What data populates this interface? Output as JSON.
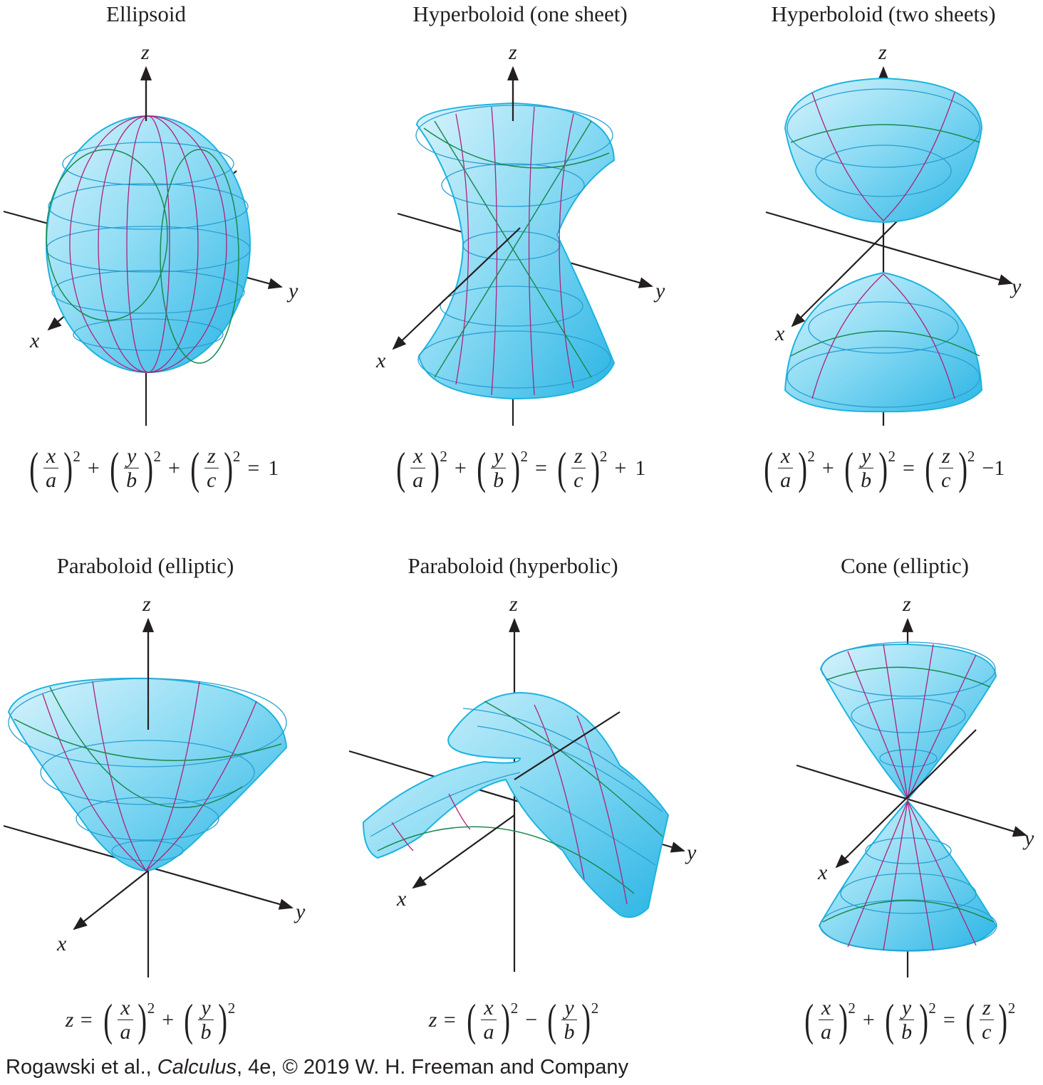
{
  "panels": [
    {
      "title": "Ellipsoid",
      "axes": {
        "x": "x",
        "y": "y",
        "z": "z"
      },
      "formula": {
        "lhs": "",
        "terms": [
          {
            "num": "x",
            "den": "a",
            "pow": "2",
            "op_after": "+"
          },
          {
            "num": "y",
            "den": "b",
            "pow": "2",
            "op_after": "+"
          },
          {
            "num": "z",
            "den": "c",
            "pow": "2",
            "op_after": "="
          }
        ],
        "tail": "1"
      }
    },
    {
      "title": "Hyperboloid (one sheet)",
      "axes": {
        "x": "x",
        "y": "y",
        "z": "z"
      },
      "formula": {
        "lhs": "",
        "terms": [
          {
            "num": "x",
            "den": "a",
            "pow": "2",
            "op_after": "+"
          },
          {
            "num": "y",
            "den": "b",
            "pow": "2",
            "op_after": "="
          },
          {
            "num": "z",
            "den": "c",
            "pow": "2",
            "op_after": "+"
          }
        ],
        "tail": "1"
      }
    },
    {
      "title": "Hyperboloid (two sheets)",
      "axes": {
        "x": "x",
        "y": "y",
        "z": "z"
      },
      "formula": {
        "lhs": "",
        "terms": [
          {
            "num": "x",
            "den": "a",
            "pow": "2",
            "op_after": "+"
          },
          {
            "num": "y",
            "den": "b",
            "pow": "2",
            "op_after": "="
          },
          {
            "num": "z",
            "den": "c",
            "pow": "2",
            "op_after": ""
          }
        ],
        "tail": "−1"
      }
    },
    {
      "title": "Paraboloid (elliptic)",
      "axes": {
        "x": "x",
        "y": "y",
        "z": "z"
      },
      "formula": {
        "lhs": "z =",
        "terms": [
          {
            "num": "x",
            "den": "a",
            "pow": "2",
            "op_after": "+"
          },
          {
            "num": "y",
            "den": "b",
            "pow": "2",
            "op_after": ""
          }
        ],
        "tail": ""
      }
    },
    {
      "title": "Paraboloid (hyperbolic)",
      "axes": {
        "x": "x",
        "y": "y",
        "z": "z"
      },
      "formula": {
        "lhs": "z =",
        "terms": [
          {
            "num": "x",
            "den": "a",
            "pow": "2",
            "op_after": "−"
          },
          {
            "num": "y",
            "den": "b",
            "pow": "2",
            "op_after": ""
          }
        ],
        "tail": ""
      }
    },
    {
      "title": "Cone (elliptic)",
      "axes": {
        "x": "x",
        "y": "y",
        "z": "z"
      },
      "formula": {
        "lhs": "",
        "terms": [
          {
            "num": "x",
            "den": "a",
            "pow": "2",
            "op_after": "+"
          },
          {
            "num": "y",
            "den": "b",
            "pow": "2",
            "op_after": "="
          },
          {
            "num": "z",
            "den": "c",
            "pow": "2",
            "op_after": ""
          }
        ],
        "tail": ""
      }
    }
  ],
  "credit": {
    "before": "Rogawski et al., ",
    "book": "Calculus",
    "after": ", 4e, © 2019 W. H. Freeman and Company"
  },
  "colors": {
    "surface_light": "#d8f3fc",
    "surface_mid": "#7fd6f2",
    "surface_dark": "#2bb5e5",
    "latitude": "#2a9fd0",
    "meridian": "#b0207a",
    "generator": "#1a8a50"
  }
}
